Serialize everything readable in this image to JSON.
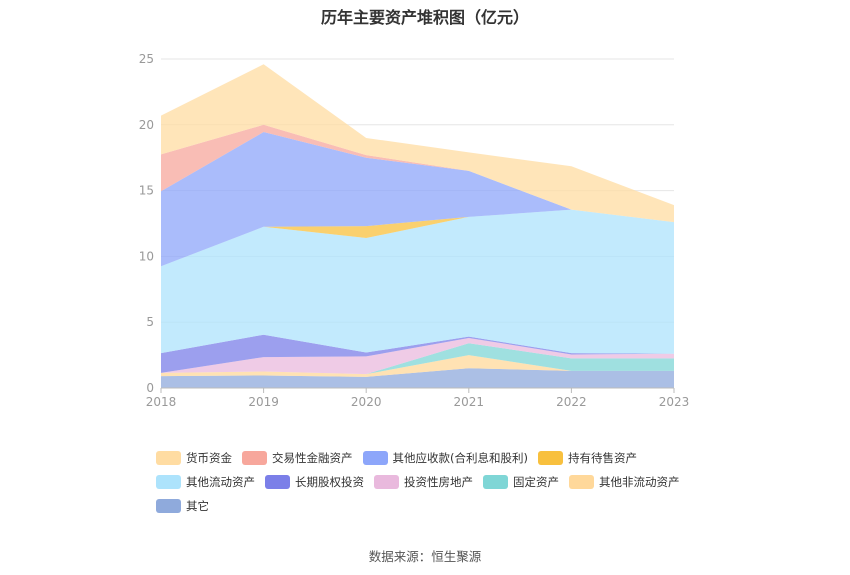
{
  "title": "历年主要资产堆积图（亿元）",
  "source_text": "数据来源：恒生聚源",
  "chart_data": {
    "type": "area",
    "stacked": true,
    "x": [
      "2018",
      "2019",
      "2020",
      "2021",
      "2022",
      "2023"
    ],
    "ylim": [
      0,
      25
    ],
    "yticks": [
      0,
      5,
      10,
      15,
      20,
      25
    ],
    "grid": true,
    "legend_position": "bottom",
    "series": [
      {
        "name": "其它",
        "color": "#8FAADC",
        "values": [
          0.9,
          0.95,
          0.85,
          1.5,
          1.3,
          1.3
        ]
      },
      {
        "name": "其他非流动资产",
        "color": "#FFD89A",
        "values": [
          0.25,
          0.3,
          0.2,
          1.0,
          0.0,
          0.0
        ]
      },
      {
        "name": "固定资产",
        "color": "#7FD6D6",
        "values": [
          0.0,
          0.0,
          0.0,
          0.9,
          0.95,
          0.95
        ]
      },
      {
        "name": "投资性房地产",
        "color": "#E9B9DD",
        "values": [
          0.0,
          1.1,
          1.35,
          0.4,
          0.3,
          0.35
        ]
      },
      {
        "name": "长期股权投资",
        "color": "#7B7FE8",
        "values": [
          1.5,
          1.7,
          0.3,
          0.1,
          0.1,
          0.0
        ]
      },
      {
        "name": "其他流动资产",
        "color": "#ADE3FC",
        "values": [
          6.6,
          8.2,
          8.7,
          9.1,
          10.9,
          10.0
        ]
      },
      {
        "name": "持有待售资产",
        "color": "#F8C03E",
        "values": [
          0.0,
          0.0,
          0.9,
          0.0,
          0.0,
          0.0
        ]
      },
      {
        "name": "其他应收款(合利息和股利)",
        "color": "#8DA6FA",
        "values": [
          5.7,
          7.2,
          5.2,
          3.5,
          0.0,
          0.0
        ]
      },
      {
        "name": "交易性金融资产",
        "color": "#F7A79C",
        "values": [
          2.8,
          0.55,
          0.2,
          0.0,
          0.0,
          0.0
        ]
      },
      {
        "name": "货币资金",
        "color": "#FFDCA2",
        "values": [
          2.95,
          4.6,
          1.3,
          1.4,
          3.3,
          1.3
        ]
      }
    ]
  },
  "legend": [
    [
      {
        "label": "货币资金",
        "color": "#FFDCA2"
      },
      {
        "label": "交易性金融资产",
        "color": "#F7A79C"
      },
      {
        "label": "其他应收款(合利息和股利)",
        "color": "#8DA6FA"
      },
      {
        "label": "持有待售资产",
        "color": "#F8C03E"
      }
    ],
    [
      {
        "label": "其他流动资产",
        "color": "#ADE3FC"
      },
      {
        "label": "长期股权投资",
        "color": "#7B7FE8"
      },
      {
        "label": "投资性房地产",
        "color": "#E9B9DD"
      },
      {
        "label": "固定资产",
        "color": "#7FD6D6"
      },
      {
        "label": "其他非流动资产",
        "color": "#FFD89A"
      }
    ],
    [
      {
        "label": "其它",
        "color": "#8FAADC"
      }
    ]
  ]
}
